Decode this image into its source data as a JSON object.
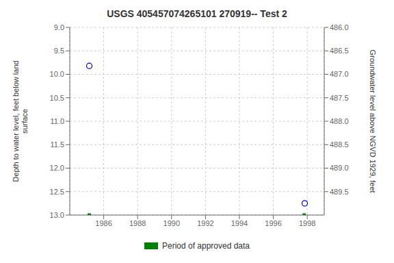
{
  "chart_data": {
    "type": "scatter",
    "title": "USGS 405457074265101 270919-- Test 2",
    "y_label": "Depth to water level, feet below land\nsurface",
    "y2_label": "Groundwater level above NGVD 1929, feet",
    "xlim": [
      1984.0,
      1999.0
    ],
    "xticks": [
      1986,
      1988,
      1990,
      1992,
      1994,
      1996,
      1998
    ],
    "ylim": [
      13.0,
      9.0
    ],
    "yticks": [
      {
        "value": 9,
        "label": "9.0"
      },
      9.5,
      {
        "value": 10,
        "label": "10.0"
      },
      10.5,
      {
        "value": 11,
        "label": "11.0"
      },
      11.5,
      {
        "value": 12,
        "label": "12.0"
      },
      12.5,
      {
        "value": 13,
        "label": "13.0"
      }
    ],
    "y2lim": [
      490.0,
      486.0
    ],
    "y2ticks": [
      {
        "value": 486,
        "label": "486.0"
      },
      486.5,
      {
        "value": 487,
        "label": "487.0"
      },
      487.5,
      {
        "value": 488,
        "label": "488.0"
      },
      488.5,
      {
        "value": 489,
        "label": "489.0"
      },
      489.5
    ],
    "grid": true,
    "legend": "bottom",
    "series": [
      {
        "type": "scatter",
        "x": [
          1985.15,
          1997.85
        ],
        "values": [
          9.82,
          12.75
        ],
        "color": "#0000cc",
        "marker": "circle"
      },
      {
        "type": "segments",
        "name": "Period of approved data",
        "color": "#008000",
        "x_start": [
          1985.05,
          1997.72
        ],
        "x_end": [
          1985.25,
          1997.92
        ],
        "values": [
          13.0,
          13.0
        ]
      }
    ]
  }
}
